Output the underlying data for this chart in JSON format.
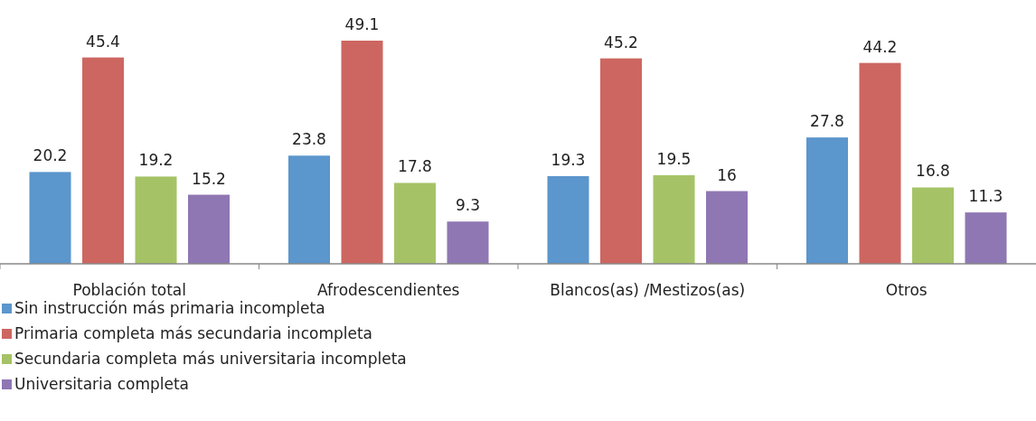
{
  "chart_data": {
    "type": "bar",
    "categories": [
      "Población total",
      "Afrodescendientes",
      "Blancos(as) /Mestizos(as)",
      "Otros"
    ],
    "series": [
      {
        "name": "Sin instrucción más primaria incompleta",
        "color": "#5b96cc",
        "values": [
          20.2,
          23.8,
          19.3,
          27.8
        ]
      },
      {
        "name": "Primaria completa más secundaria incompleta",
        "color": "#cd6660",
        "values": [
          45.4,
          49.1,
          45.2,
          44.2
        ]
      },
      {
        "name": "Secundaria completa más universitaria incompleta",
        "color": "#a5c366",
        "values": [
          19.2,
          17.8,
          19.5,
          16.8
        ]
      },
      {
        "name": "Universitaria completa",
        "color": "#8f77b3",
        "values": [
          15.2,
          9.3,
          16,
          11.3
        ]
      }
    ],
    "data_labels": true,
    "legend": "bottom left"
  }
}
